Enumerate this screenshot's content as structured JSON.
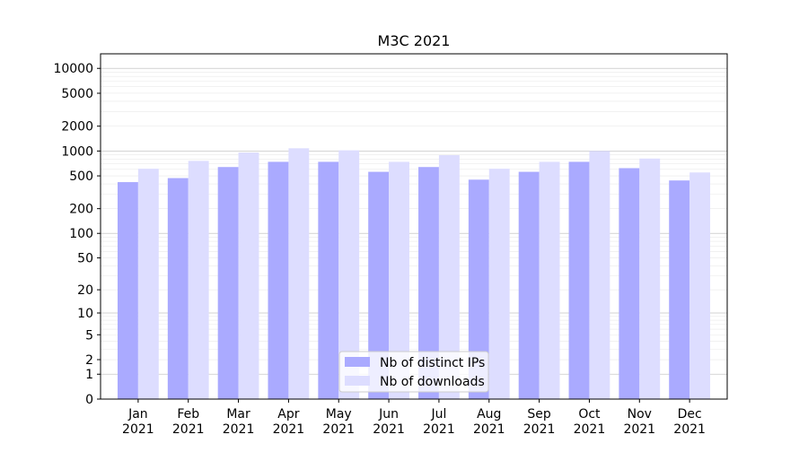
{
  "chart_data": {
    "type": "bar",
    "title": "M3C 2021",
    "xlabel": "",
    "ylabel": "",
    "y_scale": "symlog",
    "ylim": [
      0,
      15000
    ],
    "y_ticks": [
      0,
      1,
      2,
      5,
      10,
      20,
      50,
      100,
      200,
      500,
      1000,
      2000,
      5000,
      10000
    ],
    "y_tick_labels": [
      "0",
      "1",
      "2",
      "5",
      "10",
      "20",
      "50",
      "100",
      "200",
      "500",
      "1000",
      "2000",
      "5000",
      "10000"
    ],
    "grid": true,
    "legend_position": "bottom-center",
    "categories": [
      [
        "Jan",
        "2021"
      ],
      [
        "Feb",
        "2021"
      ],
      [
        "Mar",
        "2021"
      ],
      [
        "Apr",
        "2021"
      ],
      [
        "May",
        "2021"
      ],
      [
        "Jun",
        "2021"
      ],
      [
        "Jul",
        "2021"
      ],
      [
        "Aug",
        "2021"
      ],
      [
        "Sep",
        "2021"
      ],
      [
        "Oct",
        "2021"
      ],
      [
        "Nov",
        "2021"
      ],
      [
        "Dec",
        "2021"
      ]
    ],
    "series": [
      {
        "name": "Nb of distinct IPs",
        "color": "#aaaaff",
        "values": [
          420,
          470,
          640,
          740,
          740,
          560,
          640,
          450,
          560,
          740,
          620,
          440
        ]
      },
      {
        "name": "Nb of downloads",
        "color": "#ddddff",
        "values": [
          610,
          760,
          960,
          1080,
          1020,
          740,
          890,
          610,
          740,
          1000,
          810,
          550
        ]
      }
    ]
  }
}
